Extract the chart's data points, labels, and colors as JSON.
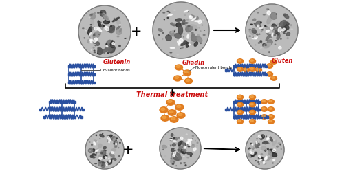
{
  "bg_color": "#ffffff",
  "blue": "#2a50a0",
  "orange": "#e07818",
  "red_label": "#cc1111",
  "thermal_text": "Thermal treatment",
  "label_glutenin": "Glutenin",
  "label_gliadin": "Gliadin",
  "label_gluten": "Gluten",
  "label_covalent": "Covalent bonds",
  "label_noncovalent": "Noncovalent bonds",
  "figsize": [
    5.0,
    2.81
  ],
  "dpi": 100
}
